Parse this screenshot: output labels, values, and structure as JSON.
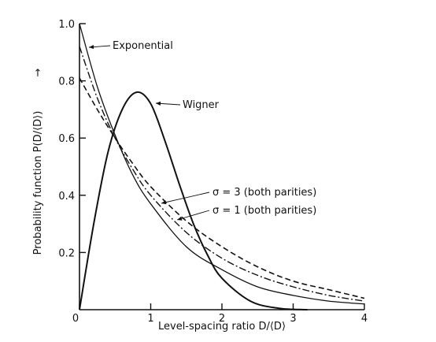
{
  "chart_data": {
    "type": "line",
    "xlabel": "Level-spacing ratio D/⟨D⟩",
    "ylabel": "Probability function P(D/⟨D⟩)",
    "ylabel_arrow": "→",
    "xlim": [
      0,
      4
    ],
    "ylim": [
      0,
      1.0
    ],
    "xticks": [
      0,
      1,
      2,
      3,
      4
    ],
    "xtick_labels": [
      "0",
      "1",
      "2",
      "3",
      "4"
    ],
    "yticks": [
      0.2,
      0.4,
      0.6,
      0.8,
      1.0
    ],
    "ytick_labels": [
      "0.2",
      "0.4",
      "0.6",
      "0.8",
      "1.0"
    ],
    "origin_label": "0",
    "grid": false,
    "series": [
      {
        "name": "Exponential",
        "style": "solid-thin",
        "x": [
          0,
          0.25,
          0.5,
          0.75,
          1.0,
          1.5,
          2.0,
          2.5,
          3.0,
          3.5,
          4.0
        ],
        "y": [
          1.0,
          0.78,
          0.61,
          0.47,
          0.37,
          0.22,
          0.14,
          0.08,
          0.05,
          0.03,
          0.02
        ]
      },
      {
        "name": "Wigner",
        "style": "solid-thick",
        "x": [
          0,
          0.2,
          0.4,
          0.6,
          0.8,
          1.0,
          1.2,
          1.4,
          1.6,
          1.8,
          2.0,
          2.4,
          2.8,
          3.2
        ],
        "y": [
          0.0,
          0.3,
          0.55,
          0.7,
          0.76,
          0.72,
          0.59,
          0.44,
          0.3,
          0.19,
          0.11,
          0.03,
          0.005,
          0.0
        ]
      },
      {
        "name": "σ = 3 (both parities)",
        "style": "dashed",
        "x": [
          0,
          0.25,
          0.5,
          0.75,
          1.0,
          1.5,
          2.0,
          2.5,
          3.0,
          3.5,
          4.0
        ],
        "y": [
          0.81,
          0.7,
          0.6,
          0.51,
          0.43,
          0.31,
          0.22,
          0.15,
          0.1,
          0.07,
          0.04
        ]
      },
      {
        "name": "σ = 1 (both parities)",
        "style": "dash-dot",
        "x": [
          0,
          0.25,
          0.5,
          0.75,
          1.0,
          1.5,
          2.0,
          2.5,
          3.0,
          3.5,
          4.0
        ],
        "y": [
          0.92,
          0.74,
          0.6,
          0.49,
          0.4,
          0.27,
          0.18,
          0.12,
          0.08,
          0.05,
          0.03
        ]
      }
    ],
    "annotations": [
      {
        "text": "Exponential",
        "series": 0
      },
      {
        "text": "Wigner",
        "series": 1
      },
      {
        "text": "σ = 3 (both parities)",
        "series": 2
      },
      {
        "text": "σ = 1 (both parities)",
        "series": 3
      }
    ]
  }
}
